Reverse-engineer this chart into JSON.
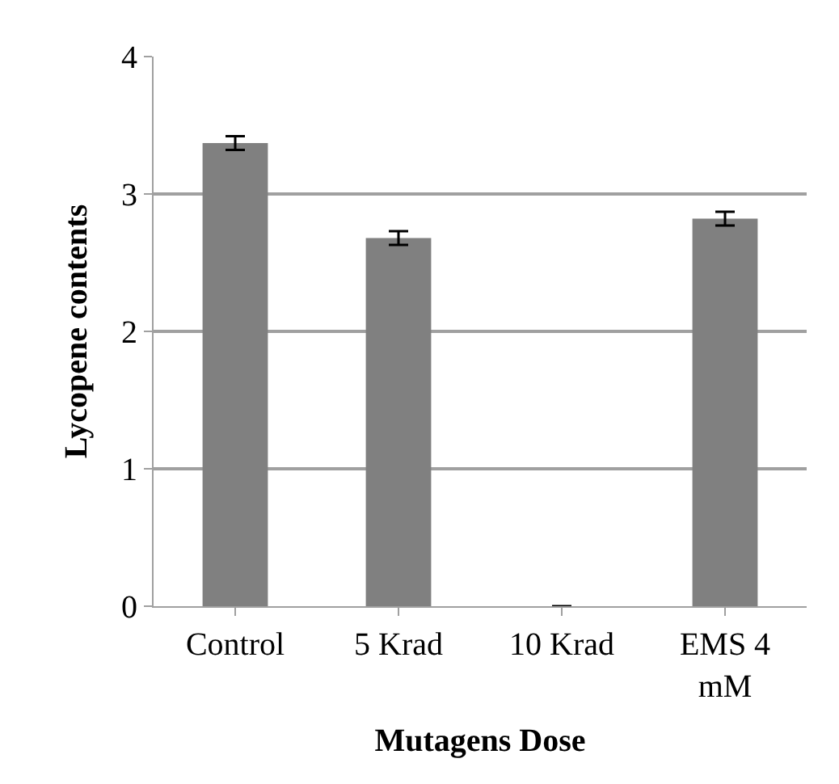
{
  "chart_data": {
    "type": "bar",
    "xlabel": "Mutagens Dose",
    "ylabel": "Lycopene contents",
    "categories": [
      "Control",
      "5 Krad",
      "10 Krad",
      "EMS 4 mM"
    ],
    "values": [
      3.37,
      2.68,
      0,
      2.82
    ],
    "errors": [
      0.05,
      0.05,
      null,
      0.05
    ],
    "color": "#808080",
    "ylim": [
      0,
      4
    ],
    "yticks": [
      0,
      1,
      2,
      3,
      4
    ],
    "grid": "y"
  }
}
